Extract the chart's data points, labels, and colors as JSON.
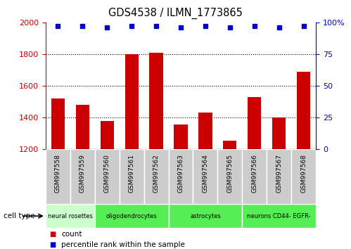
{
  "title": "GDS4538 / ILMN_1773865",
  "samples": [
    "GSM997558",
    "GSM997559",
    "GSM997560",
    "GSM997561",
    "GSM997562",
    "GSM997563",
    "GSM997564",
    "GSM997565",
    "GSM997566",
    "GSM997567",
    "GSM997568"
  ],
  "counts": [
    1520,
    1480,
    1380,
    1800,
    1810,
    1355,
    1430,
    1255,
    1530,
    1400,
    1690
  ],
  "percentile_ranks": [
    97,
    97,
    96,
    97,
    97,
    96,
    97,
    96,
    97,
    96,
    97
  ],
  "bar_color": "#cc0000",
  "dot_color": "#0000cc",
  "ylim_left": [
    1200,
    2000
  ],
  "ylim_right": [
    0,
    100
  ],
  "yticks_left": [
    1200,
    1400,
    1600,
    1800,
    2000
  ],
  "yticks_right": [
    0,
    25,
    50,
    75,
    100
  ],
  "yticklabels_right": [
    "0",
    "25",
    "50",
    "75",
    "100%"
  ],
  "grid_values": [
    1400,
    1600,
    1800
  ],
  "cell_types": [
    {
      "label": "neural rosettes",
      "start": 0,
      "end": 1,
      "color": "#ccffcc"
    },
    {
      "label": "oligodendrocytes",
      "start": 2,
      "end": 4,
      "color": "#55dd55"
    },
    {
      "label": "astrocytes",
      "start": 5,
      "end": 7,
      "color": "#55dd55"
    },
    {
      "label": "neurons CD44- EGFR-",
      "start": 8,
      "end": 10,
      "color": "#55dd55"
    }
  ],
  "tick_bg_color": "#cccccc",
  "legend_count_color": "#cc0000",
  "legend_dot_color": "#0000cc",
  "bar_bottom": 1200,
  "bar_width": 0.55
}
